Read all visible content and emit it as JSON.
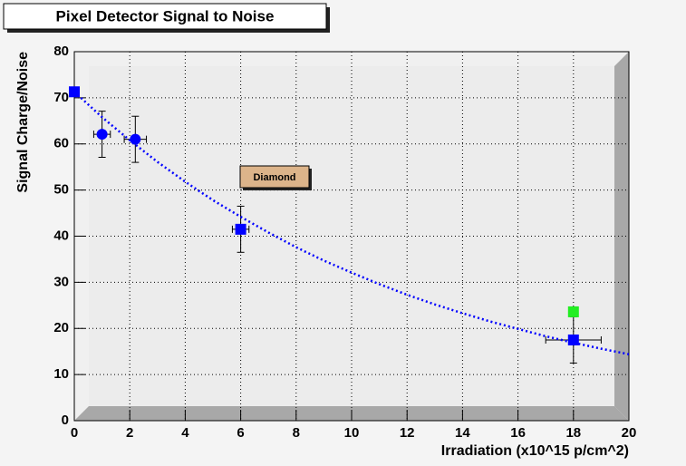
{
  "chart_data": {
    "type": "scatter",
    "title": "Pixel Detector Signal to Noise",
    "x_label": "Irradiation (x10^15 p/cm^2)",
    "y_label": "Signal Charge/Noise",
    "annotations": [
      "Diamond"
    ],
    "xlim": [
      0,
      20
    ],
    "ylim": [
      0,
      80
    ],
    "xticks": [
      0,
      2,
      4,
      6,
      8,
      10,
      12,
      14,
      16,
      18,
      20
    ],
    "yticks": [
      0,
      10,
      20,
      30,
      40,
      50,
      60,
      70,
      80
    ],
    "grid": true,
    "series": [
      {
        "type": "scatter",
        "marker": "square",
        "color": "#0000ff",
        "x": [
          0,
          6,
          18
        ],
        "values": [
          71.3,
          41.5,
          17.5
        ],
        "x_errors": [
          0,
          0.3,
          1
        ],
        "y_errors": [
          0,
          5,
          5
        ]
      },
      {
        "type": "scatter",
        "marker": "circle",
        "color": "#0000ff",
        "x": [
          1,
          2.2
        ],
        "values": [
          62.1,
          61
        ],
        "x_errors": [
          0.3,
          0.4
        ],
        "y_errors": [
          5,
          5
        ]
      },
      {
        "type": "scatter",
        "marker": "square",
        "color": "#22ee22",
        "x": [
          18
        ],
        "values": [
          23.6
        ]
      },
      {
        "type": "line",
        "color": "#0000ff",
        "dashed": true,
        "x": [
          0,
          1,
          2,
          3,
          4,
          5,
          6,
          7,
          8,
          9,
          10,
          11,
          12,
          13,
          14,
          15,
          16,
          17,
          18,
          19,
          20
        ],
        "values": [
          71.3,
          65.8,
          60.8,
          56.1,
          51.8,
          47.8,
          44.2,
          40.8,
          37.6,
          34.7,
          32.1,
          29.6,
          27.3,
          25.2,
          23.3,
          21.5,
          19.9,
          18.3,
          16.9,
          15.6,
          14.4
        ]
      }
    ]
  }
}
